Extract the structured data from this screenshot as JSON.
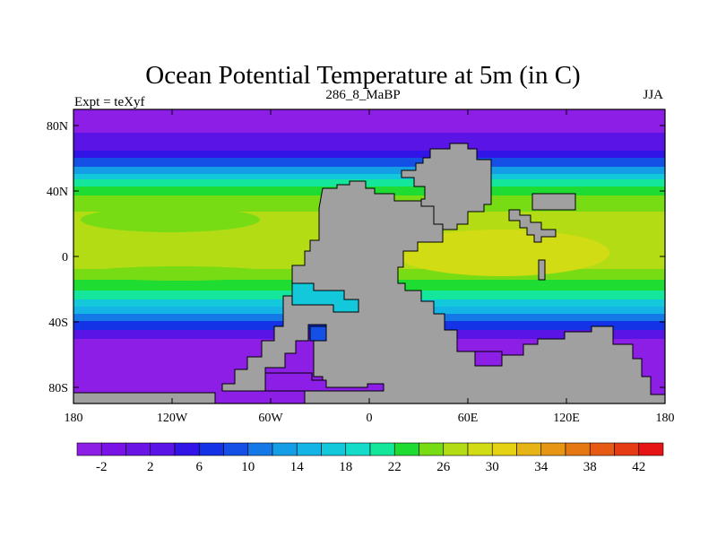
{
  "title": "Ocean Potential Temperature at 5m (in C)",
  "subtitle_left": "Expt = teXyf",
  "subtitle_center": "286_8_MaBP",
  "subtitle_right": "JJA",
  "lon_ticks": [
    "180",
    "120W",
    "60W",
    "0",
    "60E",
    "120E",
    "180"
  ],
  "lat_ticks": [
    "80N",
    "40N",
    "0",
    "40S",
    "80S"
  ],
  "colorbar": {
    "labels": [
      "-2",
      "2",
      "6",
      "10",
      "14",
      "18",
      "22",
      "26",
      "30",
      "34",
      "38",
      "42"
    ],
    "colors": [
      "#8c1ee6",
      "#7a14e6",
      "#6a14e6",
      "#5a14e6",
      "#3214e6",
      "#1432e6",
      "#1450e6",
      "#1478e6",
      "#149ee6",
      "#14b4e6",
      "#14c8dc",
      "#14dcc8",
      "#14e69b",
      "#1edc32",
      "#78dc14",
      "#b4dc14",
      "#d2dc14",
      "#e6d214",
      "#e6b414",
      "#e69614",
      "#e67814",
      "#e65a14",
      "#e63c14",
      "#e61414"
    ]
  },
  "chart_data": {
    "type": "heatmap",
    "title": "Ocean Potential Temperature at 5m (in C)",
    "variable": "Ocean Potential Temperature",
    "depth": "5m",
    "units": "C",
    "season": "JJA",
    "experiment": "teXyf",
    "period": "286_8_MaBP",
    "xlim": [
      -180,
      180
    ],
    "ylim": [
      -90,
      90
    ],
    "land_color": "#a0a0a0",
    "contour_levels": [
      -4,
      -2,
      0,
      2,
      4,
      6,
      8,
      10,
      12,
      14,
      16,
      18,
      20,
      22,
      24,
      26,
      28,
      30,
      32,
      34,
      36,
      38,
      40,
      42
    ]
  }
}
